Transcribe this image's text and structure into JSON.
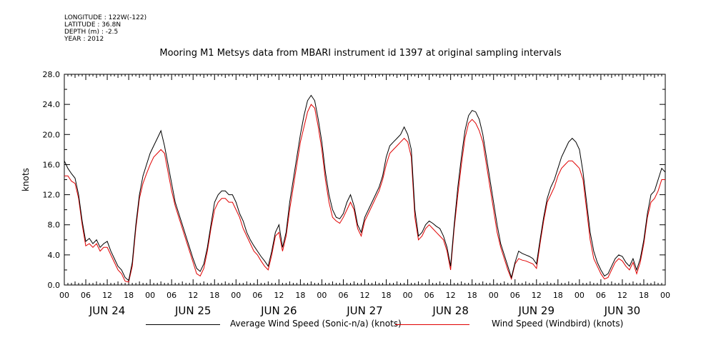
{
  "metadata": [
    "LONGITUDE : 122W(-122)",
    "LATITUDE : 36.8N",
    "DEPTH (m) : -2.5",
    "YEAR : 2012"
  ],
  "colors": {
    "series_1": "#000000",
    "series_2": "#e00000"
  },
  "chart_data": {
    "type": "line",
    "title": "Mooring M1 Metsys data from MBARI instrument id 1397 at original sampling intervals",
    "ylabel": "knots",
    "xlabel": "",
    "ylim": [
      0,
      28
    ],
    "yticks": [
      "0.0",
      "4.0",
      "8.0",
      "12.0",
      "16.0",
      "20.0",
      "24.0",
      "28.0"
    ],
    "xlim_hours": [
      0,
      168
    ],
    "x_hour_tick_labels": [
      "00",
      "06",
      "12",
      "18",
      "00",
      "06",
      "12",
      "18",
      "00",
      "06",
      "12",
      "18",
      "00",
      "06",
      "12",
      "18",
      "00",
      "06",
      "12",
      "18",
      "00",
      "06",
      "12",
      "18",
      "00",
      "06",
      "12",
      "18",
      "00"
    ],
    "day_labels": [
      "JUN 24",
      "JUN 25",
      "JUN 26",
      "JUN 27",
      "JUN 28",
      "JUN 29",
      "JUN 30"
    ],
    "grid": false,
    "legend": "bottom",
    "series": [
      {
        "name": "Average Wind Speed (Sonic-n/a) (knots)",
        "x": [
          0,
          1,
          2,
          3,
          4,
          5,
          6,
          7,
          8,
          9,
          10,
          11,
          12,
          13,
          14,
          15,
          16,
          17,
          18,
          19,
          20,
          21,
          22,
          23,
          24,
          25,
          26,
          27,
          28,
          29,
          30,
          31,
          32,
          33,
          34,
          35,
          36,
          37,
          38,
          39,
          40,
          41,
          42,
          43,
          44,
          45,
          46,
          47,
          48,
          49,
          50,
          51,
          52,
          53,
          54,
          55,
          56,
          57,
          58,
          59,
          60,
          61,
          62,
          63,
          64,
          65,
          66,
          67,
          68,
          69,
          70,
          71,
          72,
          73,
          74,
          75,
          76,
          77,
          78,
          79,
          80,
          81,
          82,
          83,
          84,
          85,
          86,
          87,
          88,
          89,
          90,
          91,
          92,
          93,
          94,
          95,
          96,
          97,
          98,
          99,
          100,
          101,
          102,
          103,
          104,
          105,
          106,
          107,
          108,
          109,
          110,
          111,
          112,
          113,
          114,
          115,
          116,
          117,
          118,
          119,
          120,
          121,
          122,
          123,
          124,
          125,
          126,
          127,
          128,
          129,
          130,
          131,
          132,
          133,
          134,
          135,
          136,
          137,
          138,
          139,
          140,
          141,
          142,
          143,
          144,
          145,
          146,
          147,
          148,
          149,
          150,
          151,
          152,
          153,
          154,
          155,
          156,
          157,
          158,
          159,
          160,
          161,
          162,
          163,
          164,
          165,
          166,
          167,
          168
        ],
        "values": [
          16.5,
          15.5,
          14.8,
          14.2,
          12,
          8.5,
          5.8,
          6.2,
          5.5,
          6,
          5,
          5.5,
          5.8,
          4.5,
          3.5,
          2.5,
          2,
          1,
          0.6,
          3,
          8,
          12,
          14.5,
          16,
          17.5,
          18.5,
          19.5,
          20.5,
          18.5,
          16,
          13.5,
          11,
          9.5,
          8,
          6.5,
          5,
          3.5,
          2.2,
          1.8,
          2.8,
          5,
          8,
          11,
          12,
          12.5,
          12.5,
          12,
          12,
          11,
          9.5,
          8.5,
          7,
          6,
          5.2,
          4.5,
          3.8,
          3.2,
          2.5,
          4.5,
          7,
          8,
          5,
          7,
          11,
          14,
          17,
          20,
          22.5,
          24.5,
          25.2,
          24.5,
          22,
          19,
          15,
          12,
          10,
          9,
          8.8,
          9.5,
          11,
          12,
          10.5,
          8,
          7,
          9,
          10,
          11,
          12,
          13,
          14.5,
          17,
          18.5,
          19,
          19.5,
          20,
          21,
          20,
          18,
          10,
          6.5,
          7,
          8,
          8.5,
          8.2,
          7.8,
          7.5,
          6.5,
          5,
          2.5,
          8,
          13,
          17,
          20.5,
          22.5,
          23.2,
          23,
          22,
          20,
          17,
          14,
          11,
          8,
          5.5,
          4,
          2.5,
          1,
          3,
          4.5,
          4.2,
          4,
          3.8,
          3.5,
          2.8,
          6,
          9,
          11.5,
          13,
          14,
          15.5,
          17,
          18,
          19,
          19.5,
          19,
          18,
          15,
          11,
          7,
          4.5,
          3,
          2,
          1.2,
          1.5,
          2.5,
          3.5,
          4,
          3.8,
          3,
          2.5,
          3.5,
          2,
          3.5,
          6,
          9.5,
          12,
          12.5,
          14,
          15.5,
          15
        ],
        "color": "#000000"
      },
      {
        "name": "Wind Speed (Windbird) (knots)",
        "x": [
          0,
          1,
          2,
          3,
          4,
          5,
          6,
          7,
          8,
          9,
          10,
          11,
          12,
          13,
          14,
          15,
          16,
          17,
          18,
          19,
          20,
          21,
          22,
          23,
          24,
          25,
          26,
          27,
          28,
          29,
          30,
          31,
          32,
          33,
          34,
          35,
          36,
          37,
          38,
          39,
          40,
          41,
          42,
          43,
          44,
          45,
          46,
          47,
          48,
          49,
          50,
          51,
          52,
          53,
          54,
          55,
          56,
          57,
          58,
          59,
          60,
          61,
          62,
          63,
          64,
          65,
          66,
          67,
          68,
          69,
          70,
          71,
          72,
          73,
          74,
          75,
          76,
          77,
          78,
          79,
          80,
          81,
          82,
          83,
          84,
          85,
          86,
          87,
          88,
          89,
          90,
          91,
          92,
          93,
          94,
          95,
          96,
          97,
          98,
          99,
          100,
          101,
          102,
          103,
          104,
          105,
          106,
          107,
          108,
          109,
          110,
          111,
          112,
          113,
          114,
          115,
          116,
          117,
          118,
          119,
          120,
          121,
          122,
          123,
          124,
          125,
          126,
          127,
          128,
          129,
          130,
          131,
          132,
          133,
          134,
          135,
          136,
          137,
          138,
          139,
          140,
          141,
          142,
          143,
          144,
          145,
          146,
          147,
          148,
          149,
          150,
          151,
          152,
          153,
          154,
          155,
          156,
          157,
          158,
          159,
          160,
          161,
          162,
          163,
          164,
          165,
          166,
          167,
          168
        ],
        "values": [
          14.5,
          14.5,
          13.8,
          13.5,
          11.5,
          8,
          5.2,
          5.5,
          5,
          5.5,
          4.5,
          5,
          5,
          4,
          3,
          2,
          1.5,
          0.5,
          0.4,
          2.5,
          7.5,
          11.5,
          13.5,
          14.8,
          16,
          17,
          17.5,
          18,
          17.5,
          15,
          12.5,
          10.5,
          9,
          7.5,
          6,
          4.5,
          3,
          1.5,
          1.2,
          2.2,
          4.5,
          7.5,
          10,
          11,
          11.5,
          11.5,
          11,
          11,
          10,
          9,
          7.5,
          6.5,
          5.5,
          4.5,
          4,
          3.2,
          2.5,
          2,
          4,
          6.5,
          7,
          4.5,
          6.5,
          10,
          13,
          16,
          19,
          21,
          23,
          24,
          23.5,
          21,
          18,
          14,
          11,
          9,
          8.5,
          8.2,
          9,
          10,
          11,
          10,
          7.5,
          6.5,
          8.5,
          9.5,
          10.5,
          11.5,
          12.5,
          14,
          16,
          17.5,
          18,
          18.5,
          19,
          19.5,
          19,
          17,
          9,
          6,
          6.5,
          7.5,
          8,
          7.5,
          7,
          6.5,
          6,
          4.5,
          2,
          7.5,
          12,
          16,
          19.5,
          21.5,
          22,
          21.5,
          20.5,
          19,
          16,
          13,
          10,
          7,
          5,
          3.5,
          2,
          0.8,
          2.8,
          3.5,
          3.3,
          3.2,
          3,
          2.8,
          2.2,
          5.5,
          8.5,
          11,
          12,
          13,
          14.5,
          15.5,
          16,
          16.5,
          16.5,
          16,
          15.5,
          14,
          10,
          6,
          3.5,
          2.5,
          1.5,
          0.8,
          1,
          2,
          3,
          3.5,
          3.2,
          2.5,
          2,
          3,
          1.5,
          3,
          5.5,
          9,
          11,
          11.5,
          12.5,
          14,
          14
        ],
        "color": "#e00000"
      }
    ]
  }
}
